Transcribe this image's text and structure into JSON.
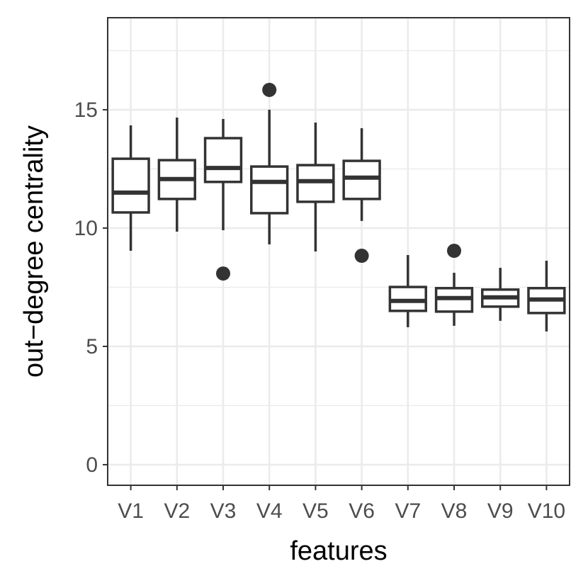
{
  "chart_data": {
    "type": "boxplot",
    "x_label": "features",
    "y_label": "out−degree centrality",
    "categories": [
      "V1",
      "V2",
      "V3",
      "V4",
      "V5",
      "V6",
      "V7",
      "V8",
      "V9",
      "V10"
    ],
    "boxes": [
      {
        "min": 9.04,
        "q1": 10.66,
        "median": 11.5,
        "q3": 12.93,
        "max": 14.34
      },
      {
        "min": 9.85,
        "q1": 11.23,
        "median": 12.07,
        "q3": 12.87,
        "max": 14.67
      },
      {
        "min": 9.91,
        "q1": 11.95,
        "median": 12.54,
        "q3": 13.8,
        "max": 14.61,
        "outliers": [
          8.08
        ]
      },
      {
        "min": 9.31,
        "q1": 10.63,
        "median": 11.95,
        "q3": 12.6,
        "max": 15.0,
        "outliers": [
          15.84
        ]
      },
      {
        "min": 9.01,
        "q1": 11.11,
        "median": 11.98,
        "q3": 12.66,
        "max": 14.46
      },
      {
        "min": 10.3,
        "q1": 11.23,
        "median": 12.13,
        "q3": 12.84,
        "max": 14.22,
        "outliers": [
          8.83
        ]
      },
      {
        "min": 5.81,
        "q1": 6.5,
        "median": 6.92,
        "q3": 7.51,
        "max": 8.86
      },
      {
        "min": 5.87,
        "q1": 6.47,
        "median": 7.04,
        "q3": 7.46,
        "max": 8.11,
        "outliers": [
          9.04
        ]
      },
      {
        "min": 6.08,
        "q1": 6.68,
        "median": 7.07,
        "q3": 7.4,
        "max": 8.32
      },
      {
        "min": 5.63,
        "q1": 6.41,
        "median": 6.98,
        "q3": 7.46,
        "max": 8.62
      }
    ],
    "color": "#333333",
    "ylim": [
      -0.87,
      18.89
    ],
    "yticks": [
      0,
      5,
      10,
      15
    ],
    "minor_yticks": [
      2.5,
      7.5,
      12.5,
      17.5
    ],
    "grid": true
  }
}
